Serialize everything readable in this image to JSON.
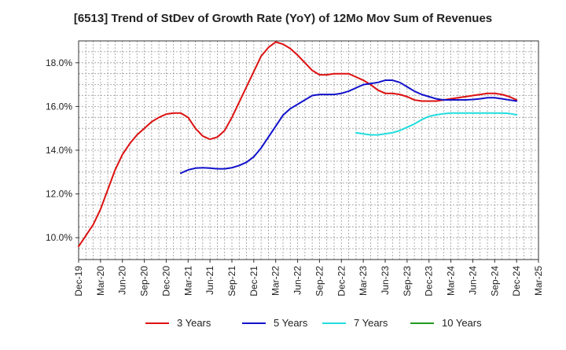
{
  "chart_data": {
    "type": "line",
    "title": "[6513]  Trend of StDev of Growth Rate (YoY) of 12Mo Mov Sum of Revenues",
    "xlabel": "",
    "ylabel": "",
    "ylim": [
      9.0,
      19.0
    ],
    "y_ticks": [
      10,
      12,
      14,
      16,
      18
    ],
    "y_tick_labels": [
      "10.0%",
      "12.0%",
      "14.0%",
      "16.0%",
      "18.0%"
    ],
    "x_range_months": [
      0,
      63
    ],
    "x_ticks": [
      0,
      3,
      6,
      9,
      12,
      15,
      18,
      21,
      24,
      27,
      30,
      33,
      36,
      39,
      42,
      45,
      48,
      51,
      54,
      57,
      60,
      63
    ],
    "x_tick_labels": [
      "Dec-19",
      "Mar-20",
      "Jun-20",
      "Sep-20",
      "Dec-20",
      "Mar-21",
      "Jun-21",
      "Sep-21",
      "Dec-21",
      "Mar-22",
      "Jun-22",
      "Sep-22",
      "Dec-22",
      "Mar-23",
      "Jun-23",
      "Sep-23",
      "Dec-23",
      "Mar-24",
      "Jun-24",
      "Sep-24",
      "Dec-24",
      "Mar-25"
    ],
    "grid": true,
    "legend_position": "bottom",
    "series": [
      {
        "name": "3 Years",
        "color": "#dd1111",
        "x": [
          0,
          1,
          2,
          3,
          4,
          5,
          6,
          7,
          8,
          9,
          10,
          11,
          12,
          13,
          14,
          15,
          16,
          17,
          18,
          19,
          20,
          21,
          22,
          23,
          24,
          25,
          26,
          27,
          28,
          29,
          30,
          31,
          32,
          33,
          34,
          35,
          36,
          37,
          38,
          39,
          40,
          41,
          42,
          43,
          44,
          45,
          46,
          47,
          48,
          49,
          50,
          51,
          52,
          53,
          54,
          55,
          56,
          57,
          58,
          59,
          60
        ],
        "values": [
          9.6,
          10.1,
          10.6,
          11.3,
          12.2,
          13.1,
          13.8,
          14.3,
          14.7,
          15.0,
          15.3,
          15.5,
          15.65,
          15.7,
          15.7,
          15.5,
          15.0,
          14.65,
          14.5,
          14.6,
          14.9,
          15.5,
          16.2,
          16.9,
          17.6,
          18.3,
          18.7,
          18.95,
          18.85,
          18.65,
          18.35,
          18.0,
          17.65,
          17.45,
          17.45,
          17.5,
          17.5,
          17.5,
          17.35,
          17.2,
          17.0,
          16.75,
          16.6,
          16.6,
          16.55,
          16.45,
          16.3,
          16.25,
          16.25,
          16.25,
          16.3,
          16.35,
          16.4,
          16.45,
          16.5,
          16.55,
          16.6,
          16.6,
          16.55,
          16.45,
          16.3
        ]
      },
      {
        "name": "5 Years",
        "color": "#1111cc",
        "x": [
          14,
          15,
          16,
          17,
          18,
          19,
          20,
          21,
          22,
          23,
          24,
          25,
          26,
          27,
          28,
          29,
          30,
          31,
          32,
          33,
          34,
          35,
          36,
          37,
          38,
          39,
          40,
          41,
          42,
          43,
          44,
          45,
          46,
          47,
          48,
          49,
          50,
          51,
          52,
          53,
          54,
          55,
          56,
          57,
          58,
          59,
          60
        ],
        "values": [
          12.95,
          13.1,
          13.18,
          13.2,
          13.18,
          13.15,
          13.15,
          13.2,
          13.3,
          13.45,
          13.7,
          14.1,
          14.6,
          15.1,
          15.6,
          15.9,
          16.1,
          16.3,
          16.5,
          16.55,
          16.55,
          16.55,
          16.6,
          16.7,
          16.85,
          17.0,
          17.05,
          17.1,
          17.2,
          17.2,
          17.1,
          16.9,
          16.7,
          16.55,
          16.45,
          16.35,
          16.3,
          16.3,
          16.3,
          16.3,
          16.32,
          16.35,
          16.4,
          16.4,
          16.35,
          16.3,
          16.25
        ]
      },
      {
        "name": "7 Years",
        "color": "#22dddd",
        "x": [
          38,
          39,
          40,
          41,
          42,
          43,
          44,
          45,
          46,
          47,
          48,
          49,
          50,
          51,
          52,
          53,
          54,
          55,
          56,
          57,
          58,
          59,
          60
        ],
        "values": [
          14.8,
          14.75,
          14.7,
          14.7,
          14.75,
          14.8,
          14.9,
          15.05,
          15.2,
          15.4,
          15.55,
          15.62,
          15.67,
          15.7,
          15.7,
          15.7,
          15.7,
          15.7,
          15.7,
          15.7,
          15.7,
          15.68,
          15.62
        ]
      },
      {
        "name": "10 Years",
        "color": "#229922",
        "x": [],
        "values": []
      }
    ]
  }
}
